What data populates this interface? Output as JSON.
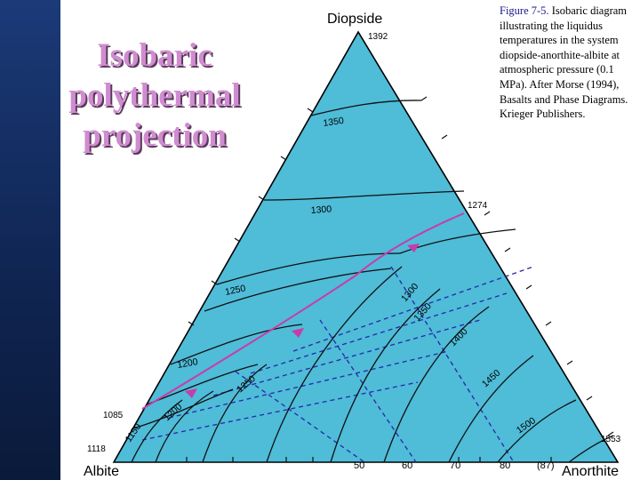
{
  "slide": {
    "title_lines": [
      "Isobaric",
      "polythermal",
      "projection"
    ]
  },
  "caption": {
    "figure_label": "Figure 7-5.",
    "text": "Isobaric diagram illustrating the liquidus temperatures in the system diopside-anorthite-albite at atmospheric pressure (0.1 MPa). After Morse (1994), Basalts and Phase Diagrams. Krieger Publishers."
  },
  "diagram": {
    "vertices": {
      "top": "Diopside",
      "left": "Albite",
      "right": "Anorthite"
    },
    "vertex_temps": {
      "diopside": "1392",
      "albite": "1118",
      "albite_edge": "1085",
      "anorthite": "1553",
      "boundary_end": "1274"
    },
    "isotherm_labels": [
      "1350",
      "1300",
      "1250",
      "1200",
      "1150",
      "1200",
      "1250",
      "1300",
      "1350",
      "1400",
      "1450",
      "1500"
    ],
    "base_ticks": [
      "50",
      "60",
      "70",
      "80",
      "(87)"
    ],
    "colors": {
      "field": "#4fbcd8",
      "boundary": "#c83caa",
      "isotherm": "#101010",
      "tie_line": "#2828a8",
      "band": "#0f2450",
      "title": "#d08cd0"
    }
  }
}
